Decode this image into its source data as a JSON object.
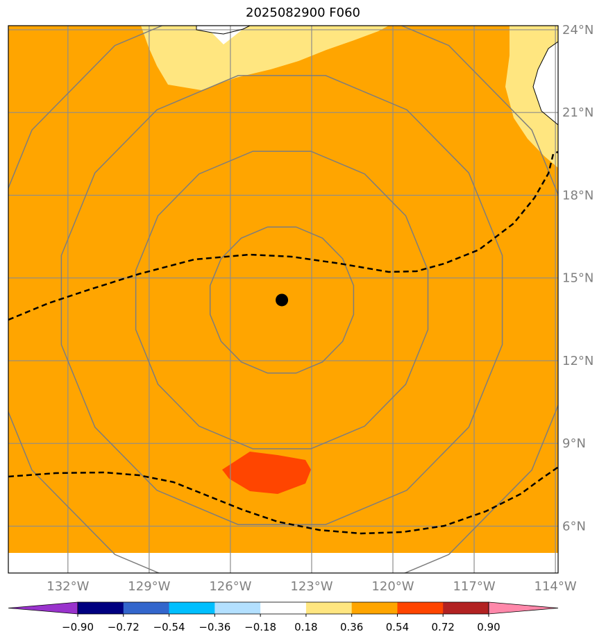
{
  "title": "2025082900 F060",
  "map": {
    "extent": {
      "lon_min": -134.2,
      "lon_max": -113.9,
      "lat_min": 4.3,
      "lat_max": 24.15
    },
    "lat_labels": [
      {
        "lat": 24,
        "text": "24°N"
      },
      {
        "lat": 21,
        "text": "21°N"
      },
      {
        "lat": 18,
        "text": "18°N"
      },
      {
        "lat": 15,
        "text": "15°N"
      },
      {
        "lat": 12,
        "text": "12°N"
      },
      {
        "lat": 9,
        "text": "9°N"
      },
      {
        "lat": 6,
        "text": "6°N"
      }
    ],
    "lon_labels": [
      {
        "lon": -132,
        "text": "132°W"
      },
      {
        "lon": -129,
        "text": "129°W"
      },
      {
        "lon": -126,
        "text": "126°W"
      },
      {
        "lon": -123,
        "text": "123°W"
      },
      {
        "lon": -120,
        "text": "120°W"
      },
      {
        "lon": -117,
        "text": "117°W"
      },
      {
        "lon": -114,
        "text": "114°W"
      }
    ],
    "grid_color": "#8c8c8c",
    "label_color": "#808080",
    "storm_center": {
      "lon": -124.1,
      "lat": 14.2
    },
    "range_circles_deg": [
      2.7,
      5.5,
      8.3,
      11.1
    ]
  },
  "colorbar": {
    "levels": [
      "−0.90",
      "−0.72",
      "−0.54",
      "−0.36",
      "−0.18",
      "0.18",
      "0.36",
      "0.54",
      "0.72",
      "0.90"
    ],
    "colors": [
      "#9933cc",
      "#000080",
      "#3366cc",
      "#00bfff",
      "#b3e0ff",
      "#ffffff",
      "#ffe680",
      "#ffa500",
      "#ff4500",
      "#b22222",
      "#ff88aa"
    ]
  }
}
